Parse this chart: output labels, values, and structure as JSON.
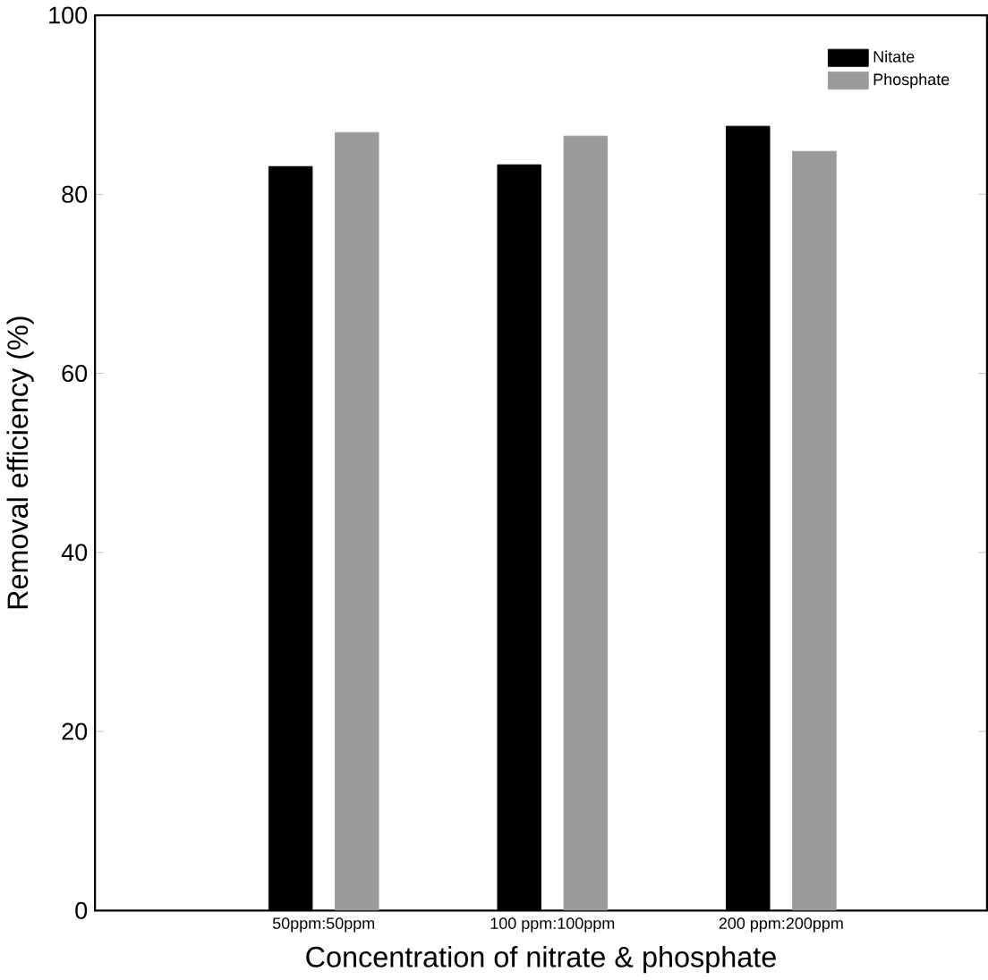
{
  "chart_data": {
    "type": "bar",
    "xlabel": "Concentration of nitrate & phosphate",
    "ylabel": "Removal efficiency (%)",
    "categories": [
      "50ppm:50ppm",
      "100 ppm:100ppm",
      "200 ppm:200ppm"
    ],
    "series": [
      {
        "name": "Nitate",
        "color": "#000000",
        "values": [
          83.1,
          83.3,
          87.6
        ]
      },
      {
        "name": "Phosphate",
        "color": "#9a9a9a",
        "values": [
          86.9,
          86.5,
          84.8
        ]
      }
    ],
    "ylim": [
      0,
      100
    ],
    "yticks": [
      0,
      20,
      40,
      60,
      80,
      100
    ],
    "legend": "top right"
  }
}
